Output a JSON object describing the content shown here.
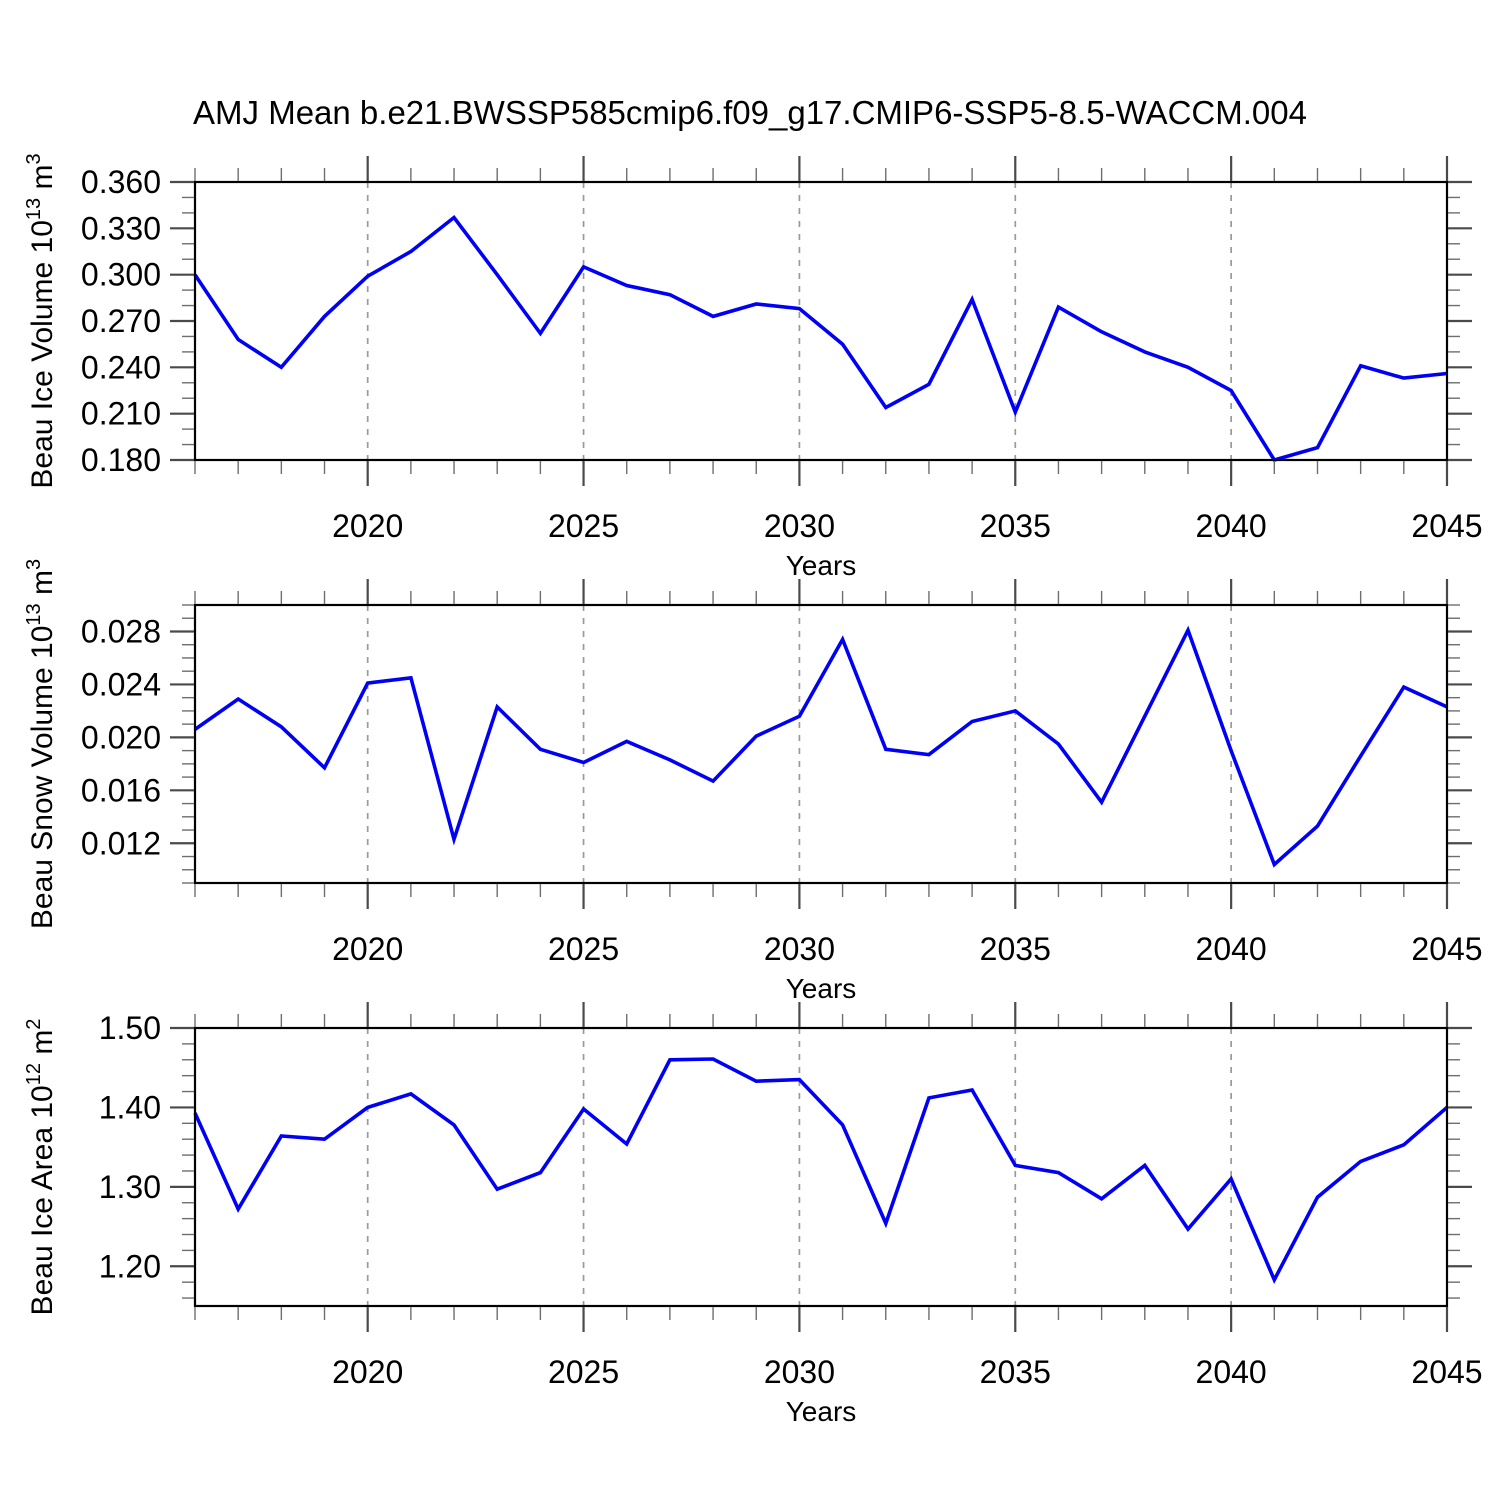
{
  "title": "AMJ Mean b.e21.BWSSP585cmip6.f09_g17.CMIP6-SSP5-8.5-WACCM.004",
  "colors": {
    "background": "#ffffff",
    "line": "#0000f5",
    "grid": "#9a9a9a",
    "axis": "#000000",
    "tick_major": "#4a4a4a",
    "tick_minor": "#6e6e6e",
    "text": "#000000"
  },
  "x_axis": {
    "label": "Years",
    "range": [
      2016,
      2045
    ],
    "major_ticks": [
      2020,
      2025,
      2030,
      2035,
      2040,
      2045
    ],
    "minor_step": 1,
    "gridlines": [
      2020,
      2025,
      2030,
      2035,
      2040
    ]
  },
  "chart_data": [
    {
      "id": "ice-volume",
      "type": "line",
      "xlabel": "Years",
      "ylabel": "Beau Ice Volume 10^13 m^3",
      "ylabel_parts": [
        {
          "t": "Beau Ice Volume 10"
        },
        {
          "t": "13",
          "sup": true
        },
        {
          "t": " m"
        },
        {
          "t": "3",
          "sup": true
        }
      ],
      "ylim": [
        0.18,
        0.36
      ],
      "yticks": [
        "0.180",
        "0.210",
        "0.240",
        "0.270",
        "0.300",
        "0.330",
        "0.360"
      ],
      "yminor_start": 0.18,
      "yminor_step": 0.01,
      "grid": true,
      "legend": "none",
      "x": [
        2016,
        2017,
        2018,
        2019,
        2020,
        2021,
        2022,
        2023,
        2024,
        2025,
        2026,
        2027,
        2028,
        2029,
        2030,
        2031,
        2032,
        2033,
        2034,
        2035,
        2036,
        2037,
        2038,
        2039,
        2040,
        2041,
        2042,
        2043,
        2044,
        2045
      ],
      "values": [
        0.3,
        0.258,
        0.24,
        0.273,
        0.299,
        0.315,
        0.337,
        0.3,
        0.262,
        0.305,
        0.293,
        0.287,
        0.273,
        0.281,
        0.278,
        0.255,
        0.214,
        0.229,
        0.284,
        0.211,
        0.279,
        0.263,
        0.25,
        0.24,
        0.225,
        0.18,
        0.188,
        0.241,
        0.233,
        0.236
      ]
    },
    {
      "id": "snow-volume",
      "type": "line",
      "xlabel": "Years",
      "ylabel": "Beau Snow Volume 10^13 m^3",
      "ylabel_parts": [
        {
          "t": "Beau Snow Volume 10"
        },
        {
          "t": "13",
          "sup": true
        },
        {
          "t": " m"
        },
        {
          "t": "3",
          "sup": true
        }
      ],
      "ylim": [
        0.009,
        0.03
      ],
      "yticks": [
        "0.012",
        "0.016",
        "0.020",
        "0.024",
        "0.028"
      ],
      "yminor_start": 0.009,
      "yminor_step": 0.001,
      "grid": true,
      "legend": "none",
      "x": [
        2016,
        2017,
        2018,
        2019,
        2020,
        2021,
        2022,
        2023,
        2024,
        2025,
        2026,
        2027,
        2028,
        2029,
        2030,
        2031,
        2032,
        2033,
        2034,
        2035,
        2036,
        2037,
        2038,
        2039,
        2040,
        2041,
        2042,
        2043,
        2044,
        2045
      ],
      "values": [
        0.0206,
        0.0229,
        0.0208,
        0.0177,
        0.0241,
        0.0245,
        0.0123,
        0.0223,
        0.0191,
        0.0181,
        0.0197,
        0.0183,
        0.0167,
        0.0201,
        0.0216,
        0.0274,
        0.0191,
        0.0187,
        0.0212,
        0.022,
        0.0195,
        0.0151,
        0.0216,
        0.0281,
        0.019,
        0.0104,
        0.0133,
        0.0186,
        0.0238,
        0.0223
      ]
    },
    {
      "id": "ice-area",
      "type": "line",
      "xlabel": "Years",
      "ylabel": "Beau Ice Area 10^12 m^2",
      "ylabel_parts": [
        {
          "t": "Beau Ice Area 10"
        },
        {
          "t": "12",
          "sup": true
        },
        {
          "t": " m"
        },
        {
          "t": "2",
          "sup": true
        }
      ],
      "ylim": [
        1.15,
        1.5
      ],
      "yticks": [
        "1.20",
        "1.30",
        "1.40",
        "1.50"
      ],
      "yminor_start": 1.16,
      "yminor_step": 0.02,
      "grid": true,
      "legend": "none",
      "x": [
        2016,
        2017,
        2018,
        2019,
        2020,
        2021,
        2022,
        2023,
        2024,
        2025,
        2026,
        2027,
        2028,
        2029,
        2030,
        2031,
        2032,
        2033,
        2034,
        2035,
        2036,
        2037,
        2038,
        2039,
        2040,
        2041,
        2042,
        2043,
        2044,
        2045
      ],
      "values": [
        1.393,
        1.272,
        1.364,
        1.36,
        1.4,
        1.417,
        1.378,
        1.297,
        1.318,
        1.398,
        1.354,
        1.46,
        1.461,
        1.433,
        1.435,
        1.378,
        1.254,
        1.412,
        1.422,
        1.327,
        1.318,
        1.285,
        1.327,
        1.247,
        1.31,
        1.183,
        1.287,
        1.332,
        1.353,
        1.4
      ]
    }
  ]
}
